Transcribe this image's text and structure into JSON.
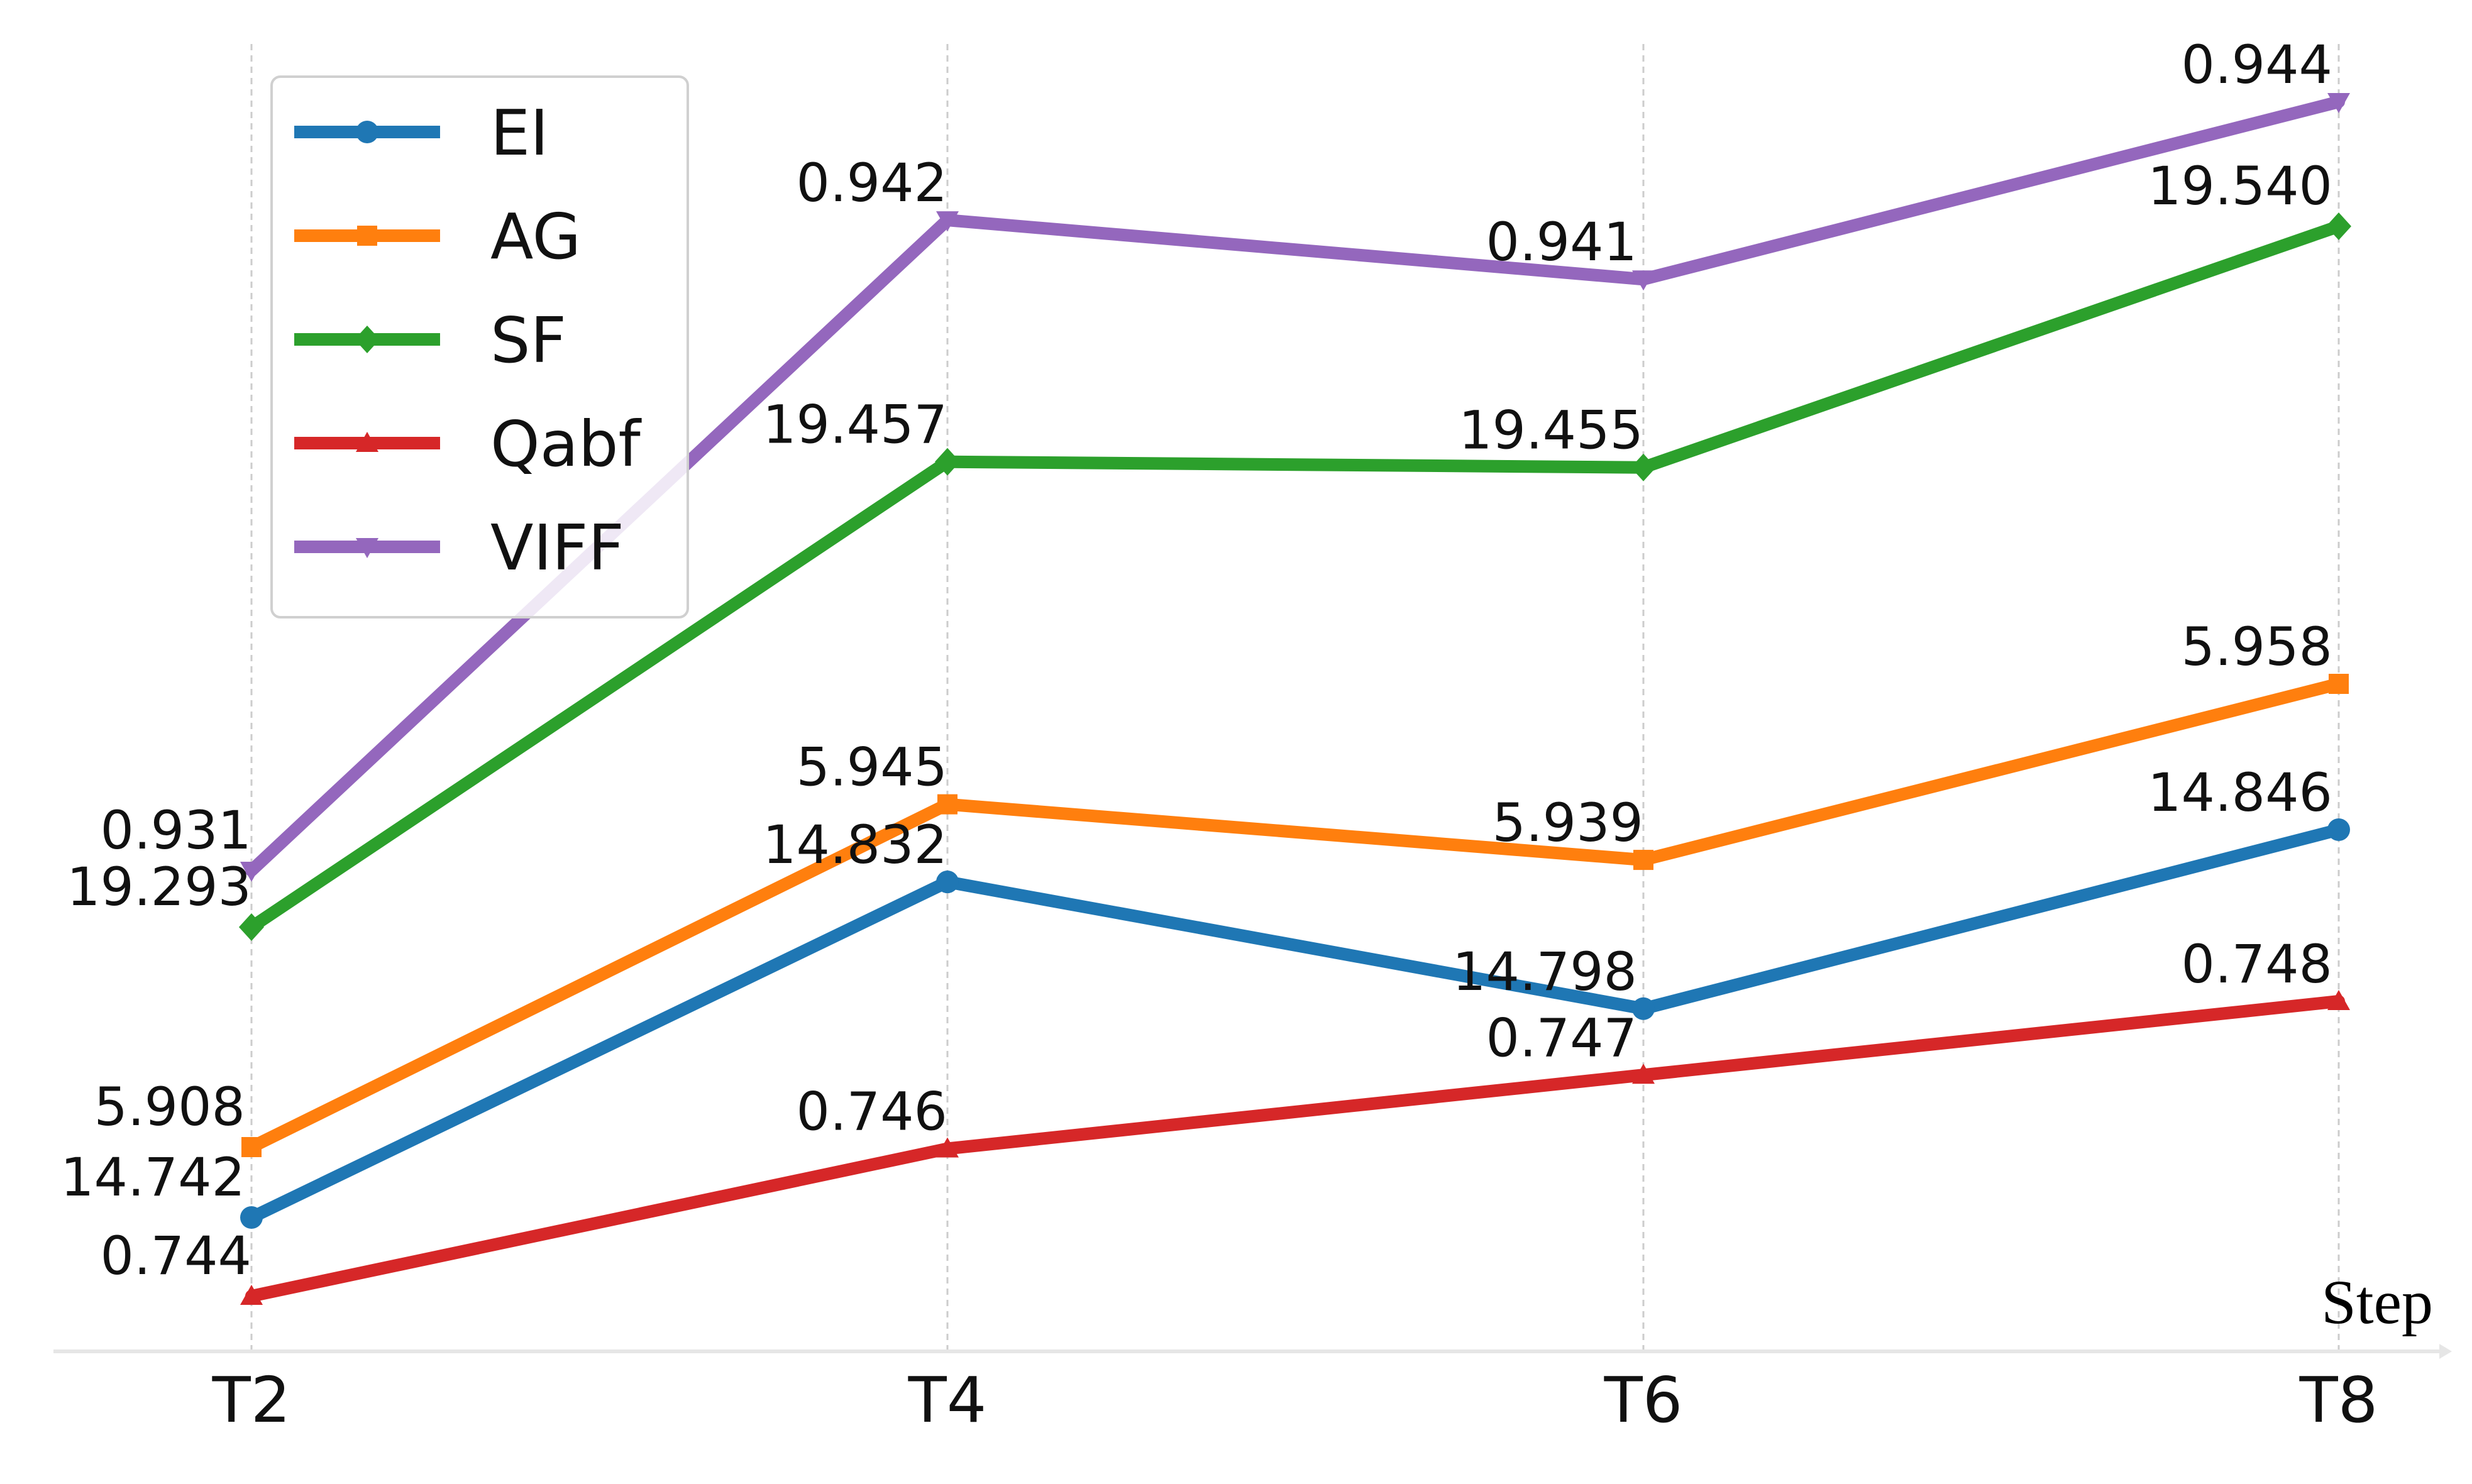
{
  "chart_data": {
    "type": "line",
    "categories": [
      "T2",
      "T4",
      "T6",
      "T8"
    ],
    "xlabel": "Step",
    "ylabel": "",
    "title": "",
    "grid": "vertical dashed",
    "legend_position": "top-left",
    "series": [
      {
        "name": "EI",
        "color": "#1f77b4",
        "marker": "circle",
        "values": [
          14.742,
          14.832,
          14.798,
          14.846
        ],
        "labels": [
          "14.742",
          "14.832",
          "14.798",
          "14.846"
        ]
      },
      {
        "name": "AG",
        "color": "#ff7f0e",
        "marker": "square",
        "values": [
          5.908,
          5.945,
          5.939,
          5.958
        ],
        "labels": [
          "5.908",
          "5.945",
          "5.939",
          "5.958"
        ]
      },
      {
        "name": "SF",
        "color": "#2ca02c",
        "marker": "diamond",
        "values": [
          19.293,
          19.457,
          19.455,
          19.54
        ],
        "labels": [
          "19.293",
          "19.457",
          "19.455",
          "19.540"
        ]
      },
      {
        "name": "Qabf",
        "color": "#d62728",
        "marker": "triangle-up",
        "values": [
          0.744,
          0.746,
          0.747,
          0.748
        ],
        "labels": [
          "0.744",
          "0.746",
          "0.747",
          "0.748"
        ]
      },
      {
        "name": "VIFF",
        "color": "#9467bd",
        "marker": "triangle-down",
        "values": [
          0.931,
          0.942,
          0.941,
          0.944
        ],
        "labels": [
          "0.931",
          "0.942",
          "0.941",
          "0.944"
        ]
      }
    ]
  }
}
